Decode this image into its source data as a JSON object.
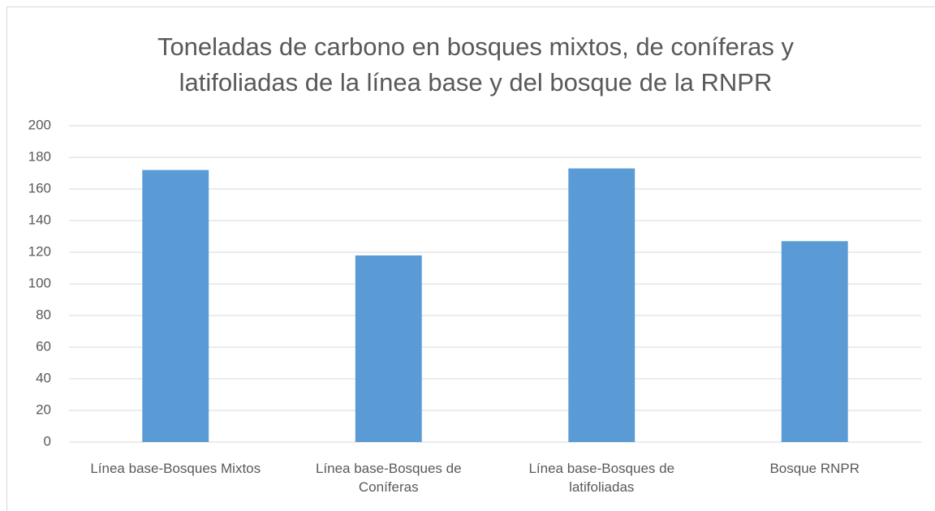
{
  "chart_data": {
    "type": "bar",
    "title": "Toneladas de carbono en bosques mixtos, de coníferas y latifoliadas de la línea base y del bosque de la RNPR",
    "categories": [
      "Línea base-Bosques Mixtos",
      "Línea base-Bosques de Coníferas",
      "Línea base-Bosques de latifoliadas",
      "Bosque RNPR"
    ],
    "values": [
      172,
      118,
      173,
      127
    ],
    "color": "#5b9bd5",
    "ylim": [
      0,
      200
    ],
    "yticks": [
      0,
      20,
      40,
      60,
      80,
      100,
      120,
      140,
      160,
      180,
      200
    ],
    "grid": true
  }
}
